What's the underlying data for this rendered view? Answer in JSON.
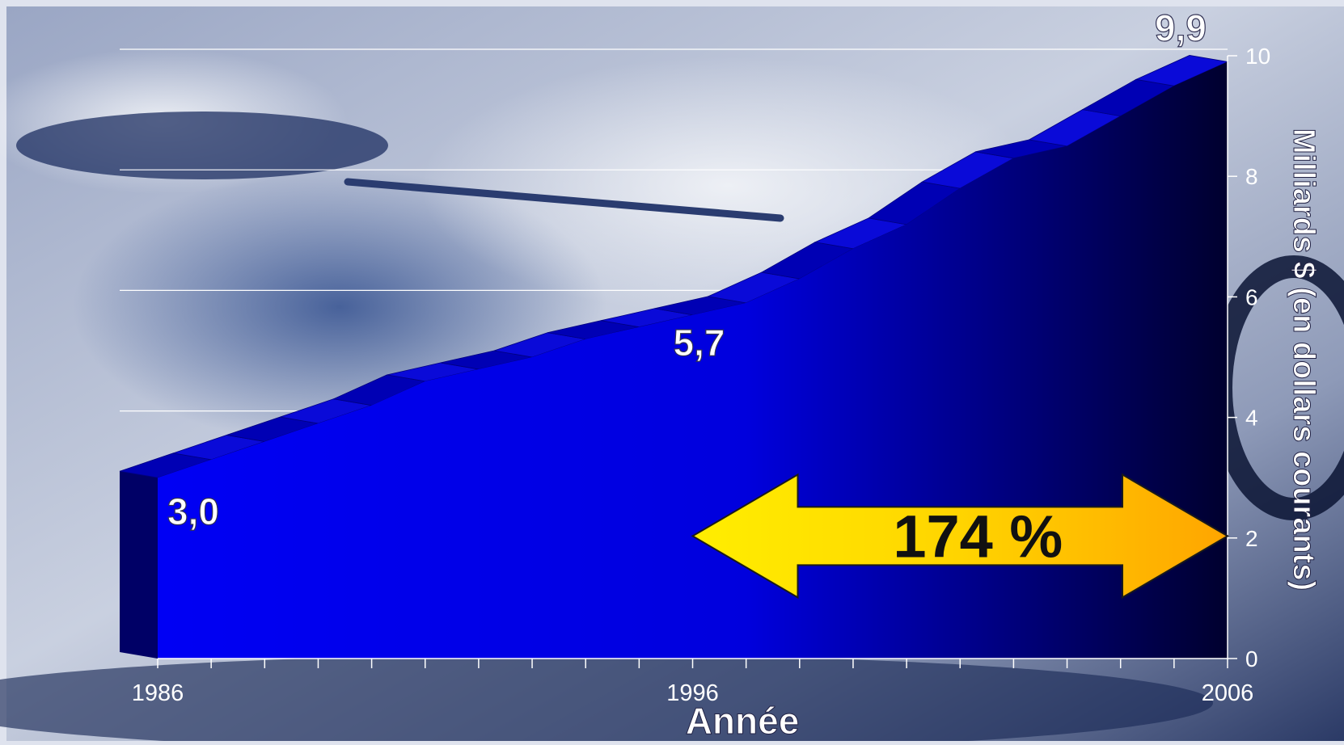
{
  "chart_data": {
    "type": "area",
    "x_start": 1986,
    "x_end": 2006,
    "x": [
      1986,
      1987,
      1988,
      1989,
      1990,
      1991,
      1992,
      1993,
      1994,
      1995,
      1996,
      1997,
      1998,
      1999,
      2000,
      2001,
      2002,
      2003,
      2004,
      2005,
      2006
    ],
    "values": [
      3.0,
      3.3,
      3.6,
      3.9,
      4.2,
      4.6,
      4.8,
      5.0,
      5.3,
      5.5,
      5.7,
      5.9,
      6.3,
      6.8,
      7.2,
      7.8,
      8.3,
      8.5,
      9.0,
      9.5,
      9.9
    ],
    "x_tick_labels": [
      "1986",
      "1996",
      "2006"
    ],
    "y_ticks": [
      "0",
      "2",
      "4",
      "6",
      "8",
      "10"
    ],
    "ylim": [
      0,
      10
    ],
    "xlabel": "Année",
    "ylabel": "Milliards $ (en dollars courants)",
    "data_labels": [
      {
        "x": 1986,
        "text": "3,0"
      },
      {
        "x": 1996,
        "text": "5,7"
      },
      {
        "x": 2006,
        "text": "9,9"
      }
    ],
    "annotation": {
      "text": "174 %",
      "from": 1996,
      "to": 2006,
      "y": 2.3
    },
    "grid": "horizontal",
    "colors": {
      "area": "#0000ee",
      "area_dark": "#00003a",
      "arrow_start": "#ffee00",
      "arrow_end": "#ffa500",
      "grid": "#ffffff"
    }
  }
}
